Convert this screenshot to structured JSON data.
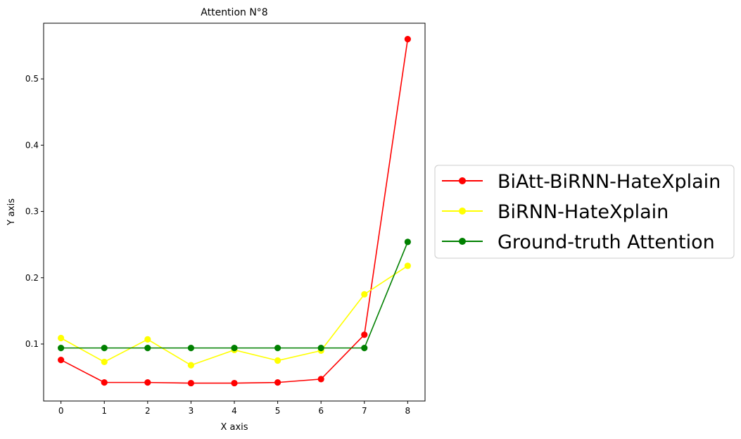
{
  "chart_data": {
    "type": "line",
    "title": "Attention N°8",
    "xlabel": "X axis",
    "ylabel": "Y axis",
    "x": [
      0,
      1,
      2,
      3,
      4,
      5,
      6,
      7,
      8
    ],
    "xlim": [
      -0.4,
      8.4
    ],
    "ylim": [
      0.014,
      0.584
    ],
    "xticks": [
      0,
      1,
      2,
      3,
      4,
      5,
      6,
      7,
      8
    ],
    "yticks": [
      0.1,
      0.2,
      0.3,
      0.4,
      0.5
    ],
    "grid": false,
    "legend_position": "right, outside plot",
    "series": [
      {
        "name": "BiAtt-BiRNN-HateXplain",
        "color": "#ff0000",
        "values": [
          0.076,
          0.042,
          0.042,
          0.041,
          0.041,
          0.042,
          0.047,
          0.114,
          0.56
        ]
      },
      {
        "name": "BiRNN-HateXplain",
        "color": "#ffff00",
        "values": [
          0.109,
          0.073,
          0.107,
          0.068,
          0.091,
          0.075,
          0.09,
          0.175,
          0.218
        ]
      },
      {
        "name": "Ground-truth Attention",
        "color": "#008000",
        "values": [
          0.094,
          0.094,
          0.094,
          0.094,
          0.094,
          0.094,
          0.094,
          0.094,
          0.254
        ]
      }
    ]
  }
}
